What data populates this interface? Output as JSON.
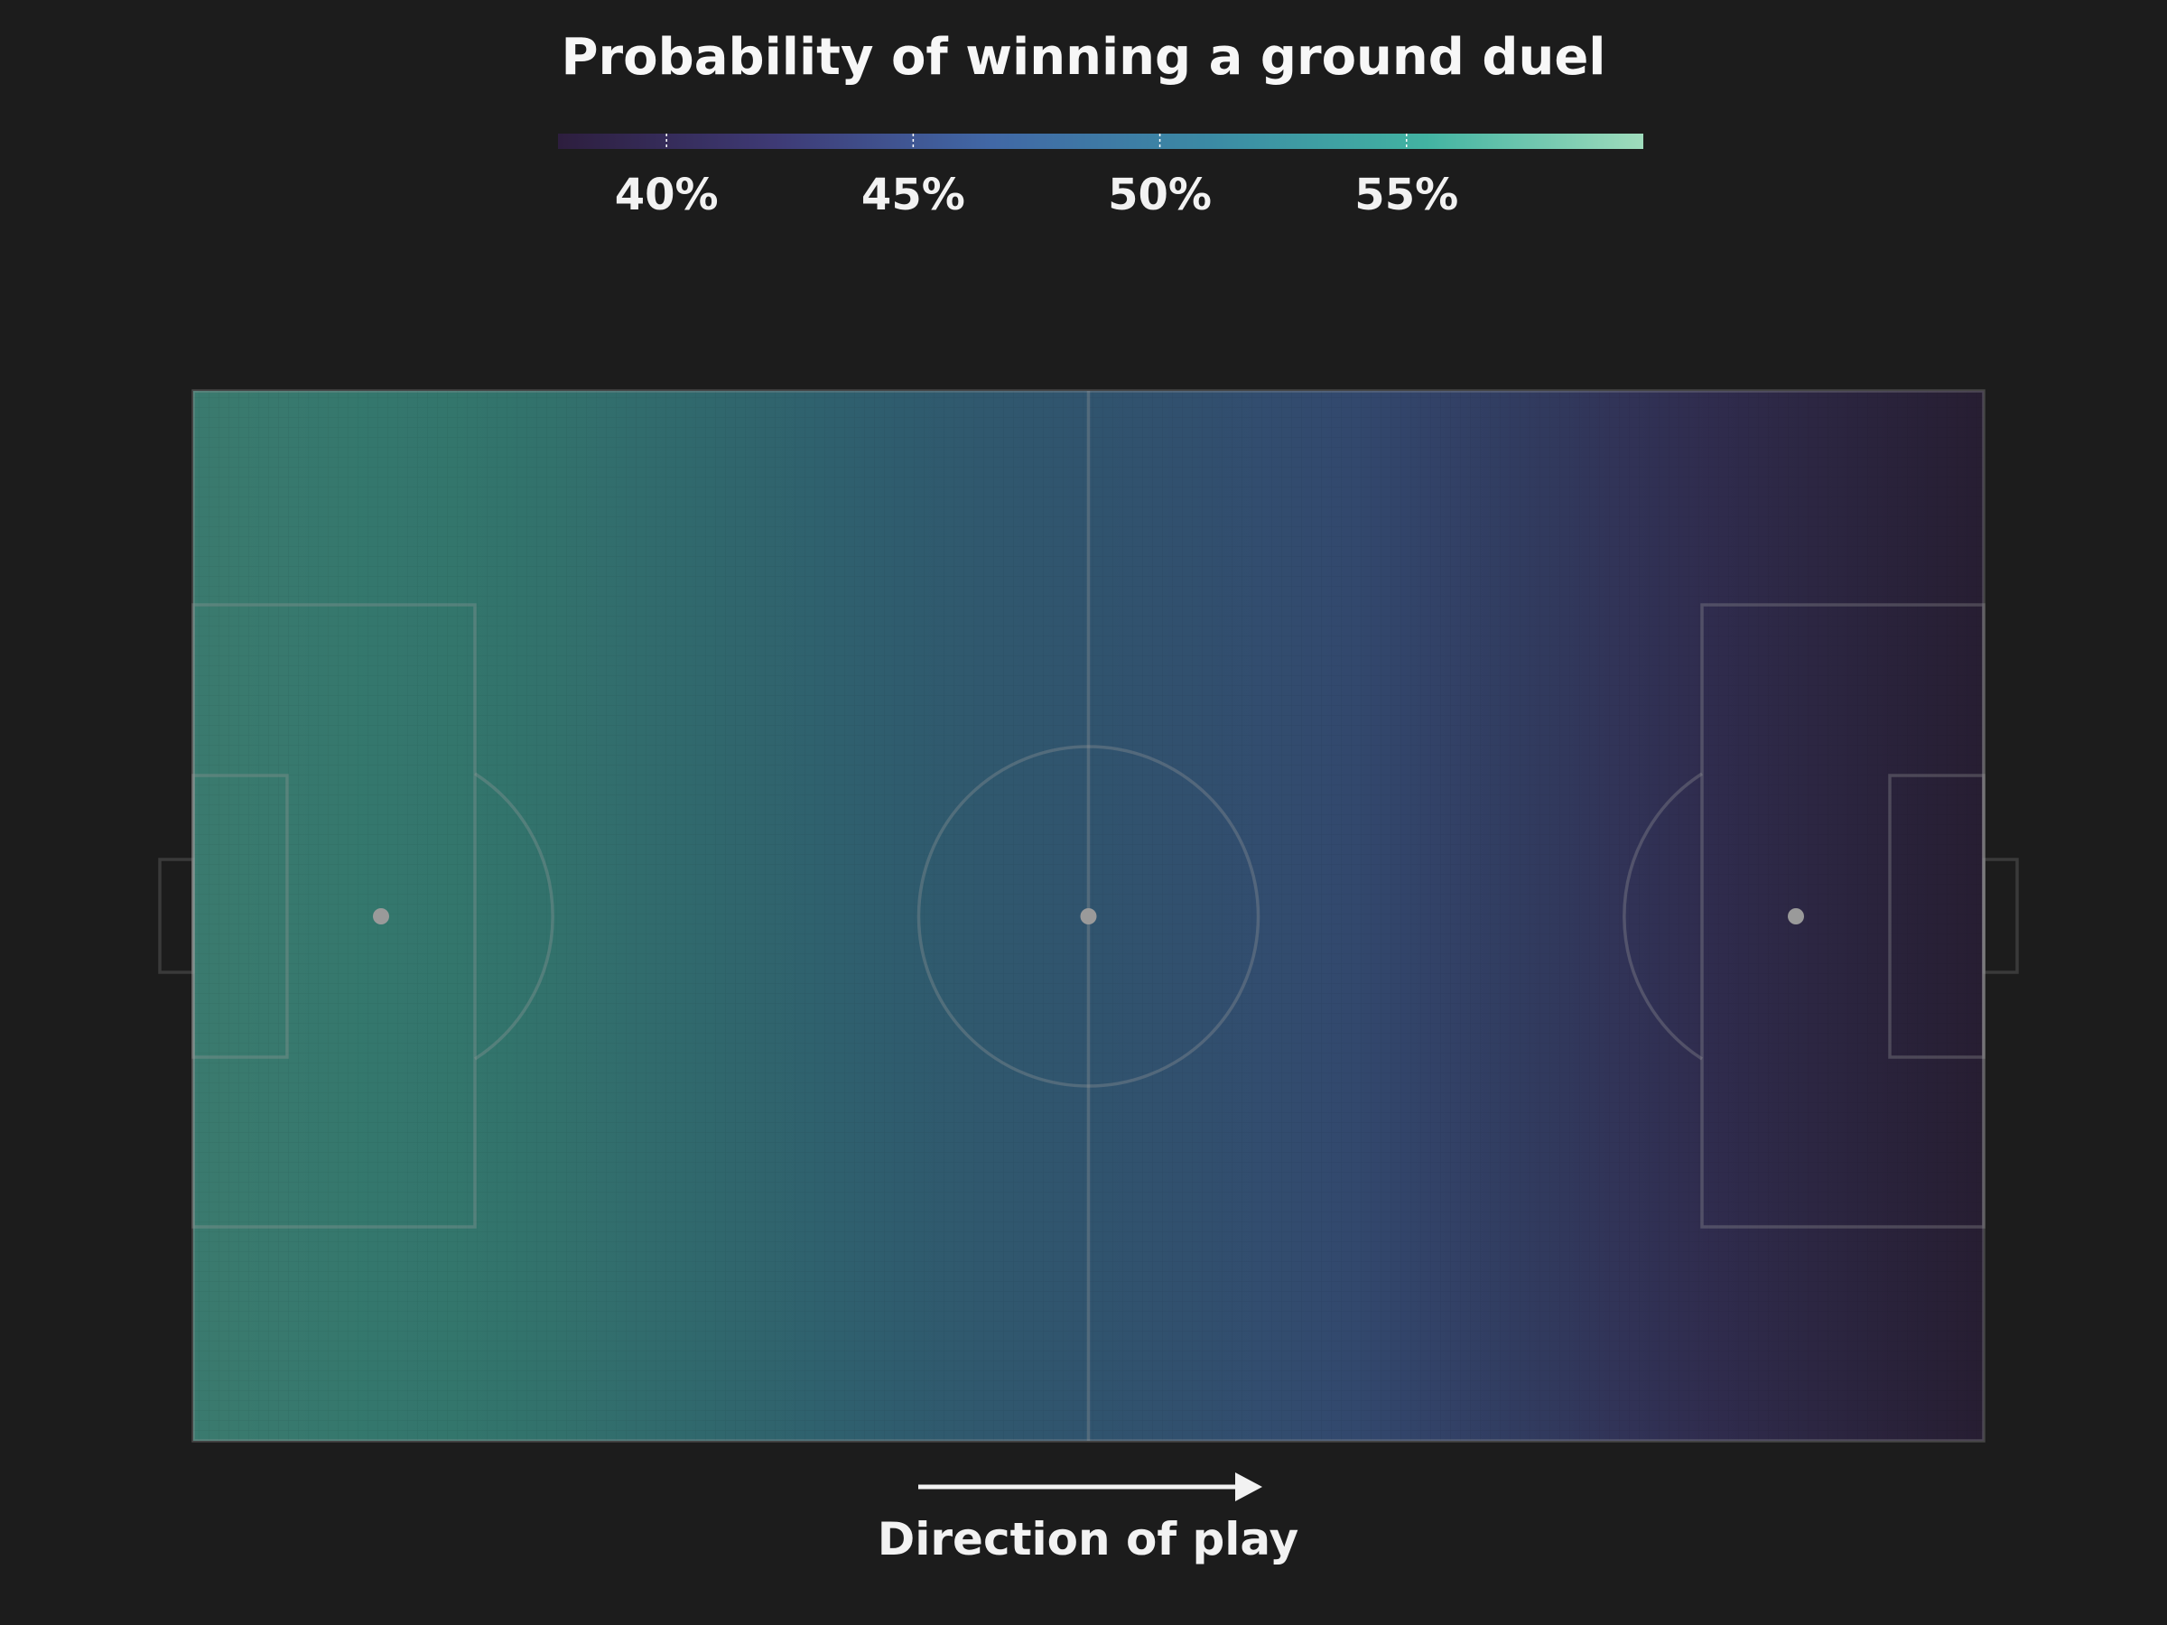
{
  "chart_data": {
    "type": "heatmap",
    "title": "Probability of winning a ground duel",
    "colorbar": {
      "min": 37.8,
      "max": 59.8,
      "ticks": [
        {
          "value": 40,
          "label": "40%"
        },
        {
          "value": 45,
          "label": "45%"
        },
        {
          "value": 50,
          "label": "50%"
        },
        {
          "value": 55,
          "label": "55%"
        }
      ],
      "colormap": [
        "#2d1e3e",
        "#3e3a75",
        "#4168a6",
        "#3b8aa4",
        "#42b3a2",
        "#9fdcbc"
      ]
    },
    "x_along_pitch": [
      0,
      5,
      10,
      15,
      20,
      25,
      30,
      35,
      40,
      45,
      50,
      55,
      60,
      65,
      70,
      75,
      80,
      85,
      90,
      95,
      100
    ],
    "values_percent": [
      56.0,
      55.8,
      55.5,
      55.2,
      54.5,
      53.5,
      52.5,
      51.5,
      50.5,
      49.6,
      48.8,
      48.0,
      47.2,
      46.3,
      45.3,
      44.2,
      43.0,
      41.6,
      40.3,
      39.1,
      38.0
    ],
    "direction_label": "Direction of play",
    "colors": {
      "background": "#1c1c1c",
      "pitch_lines": "#8a8a8a",
      "text": "#f2f2f2"
    }
  }
}
